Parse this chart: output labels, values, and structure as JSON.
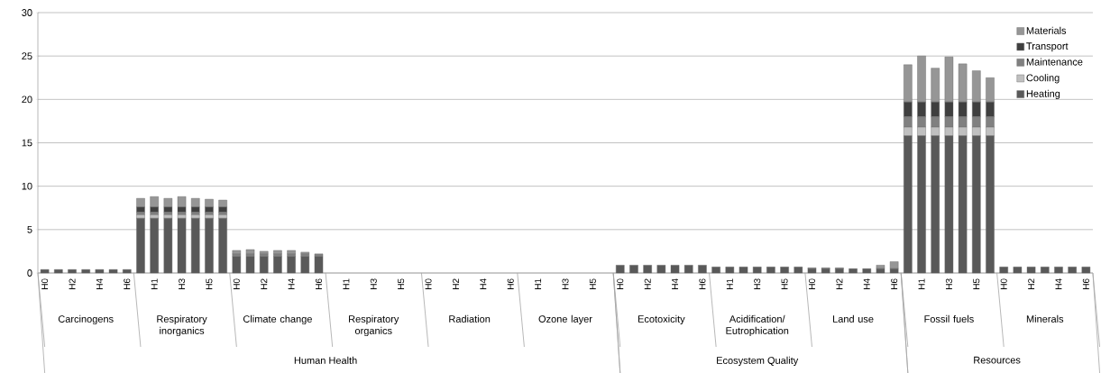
{
  "chart_data": {
    "type": "bar",
    "stacked": true,
    "categories": [
      "H0",
      null,
      "H2",
      null,
      "H4",
      null,
      "H6",
      null,
      "H1",
      null,
      "H3",
      null,
      "H5",
      null,
      "H0",
      null,
      "H2",
      null,
      "H4",
      null,
      "H6",
      null,
      "H1",
      null,
      "H3",
      null,
      "H5",
      null,
      "H0",
      null,
      "H2",
      null,
      "H4",
      null,
      "H6",
      null,
      "H1",
      null,
      "H3",
      null,
      "H5",
      null,
      "H0",
      null,
      "H2",
      null,
      "H4",
      null,
      "H6",
      null,
      "H1",
      null,
      "H3",
      null,
      "H5",
      null,
      "H0",
      null,
      "H2",
      null,
      "H4",
      null,
      "H6",
      null,
      "H1",
      null,
      "H3",
      null,
      "H5",
      null,
      "H0",
      null,
      "H2",
      null,
      "H4",
      null,
      "H6"
    ],
    "series": [
      {
        "name": "Heating",
        "color": "#595959",
        "values": [
          0.4,
          0.4,
          0.4,
          0.4,
          0.4,
          0.4,
          0.4,
          6.3,
          6.3,
          6.3,
          6.3,
          6.3,
          6.3,
          6.3,
          1.9,
          1.9,
          1.9,
          1.9,
          1.9,
          1.9,
          1.9,
          0,
          0,
          0,
          0,
          0,
          0,
          0,
          0,
          0,
          0,
          0,
          0,
          0,
          0,
          0,
          0,
          0,
          0,
          0,
          0,
          0,
          0.9,
          0.9,
          0.9,
          0.9,
          0.9,
          0.9,
          0.9,
          0.7,
          0.7,
          0.7,
          0.7,
          0.7,
          0.7,
          0.7,
          0.5,
          0.5,
          0.5,
          0.5,
          0.5,
          0.5,
          0.5,
          15.8,
          15.8,
          15.8,
          15.8,
          15.8,
          15.8,
          15.8,
          0.7,
          0.7,
          0.7,
          0.7,
          0.7,
          0.7,
          0.7
        ]
      },
      {
        "name": "Cooling",
        "color": "#c0c0c0",
        "values": [
          0,
          0,
          0,
          0,
          0,
          0,
          0,
          0.4,
          0.4,
          0.4,
          0.4,
          0.4,
          0.4,
          0.4,
          0,
          0,
          0,
          0,
          0,
          0,
          0,
          0,
          0,
          0,
          0,
          0,
          0,
          0,
          0,
          0,
          0,
          0,
          0,
          0,
          0,
          0,
          0,
          0,
          0,
          0,
          0,
          0,
          0,
          0,
          0,
          0,
          0,
          0,
          0,
          0,
          0,
          0,
          0,
          0,
          0,
          0,
          0,
          0,
          0,
          0,
          0,
          0,
          0,
          1.0,
          1.0,
          1.0,
          1.0,
          1.0,
          1.0,
          1.0,
          0,
          0,
          0,
          0,
          0,
          0,
          0
        ]
      },
      {
        "name": "Maintenance",
        "color": "#808080",
        "values": [
          0,
          0,
          0,
          0,
          0,
          0,
          0,
          0.3,
          0.3,
          0.3,
          0.3,
          0.3,
          0.3,
          0.3,
          0.3,
          0.3,
          0.3,
          0.3,
          0.3,
          0.3,
          0.3,
          0,
          0,
          0,
          0,
          0,
          0,
          0,
          0,
          0,
          0,
          0,
          0,
          0,
          0,
          0,
          0,
          0,
          0,
          0,
          0,
          0,
          0,
          0,
          0,
          0,
          0,
          0,
          0,
          0,
          0,
          0,
          0,
          0,
          0,
          0,
          0,
          0,
          0,
          0,
          0,
          0,
          0,
          1.2,
          1.2,
          1.2,
          1.2,
          1.2,
          1.2,
          1.2,
          0,
          0,
          0,
          0,
          0,
          0,
          0
        ]
      },
      {
        "name": "Transport",
        "color": "#3f3f3f",
        "values": [
          0,
          0,
          0,
          0,
          0,
          0,
          0,
          0.6,
          0.6,
          0.6,
          0.6,
          0.6,
          0.6,
          0.6,
          0,
          0,
          0,
          0,
          0,
          0,
          0,
          0,
          0,
          0,
          0,
          0,
          0,
          0,
          0,
          0,
          0,
          0,
          0,
          0,
          0,
          0,
          0,
          0,
          0,
          0,
          0,
          0,
          0,
          0,
          0,
          0,
          0,
          0,
          0,
          0,
          0,
          0,
          0,
          0,
          0,
          0,
          0,
          0,
          0,
          0,
          0,
          0,
          0,
          1.7,
          1.7,
          1.7,
          1.7,
          1.7,
          1.7,
          1.7,
          0,
          0,
          0,
          0,
          0,
          0,
          0
        ]
      },
      {
        "name": "Materials",
        "color": "#969696",
        "values": [
          0,
          0,
          0,
          0,
          0,
          0,
          0,
          1.0,
          1.2,
          1.0,
          1.2,
          1.0,
          0.9,
          0.8,
          0.4,
          0.5,
          0.3,
          0.4,
          0.4,
          0.2,
          0,
          0,
          0,
          0,
          0,
          0,
          0,
          0,
          0,
          0,
          0,
          0,
          0,
          0,
          0,
          0,
          0,
          0,
          0,
          0,
          0,
          0,
          0,
          0,
          0,
          0,
          0,
          0,
          0,
          0,
          0,
          0,
          0,
          0,
          0,
          0,
          0.1,
          0.1,
          0.1,
          0,
          0,
          0.4,
          0.8,
          4.3,
          5.3,
          3.9,
          5.2,
          4.4,
          3.6,
          2.8,
          0,
          0,
          0,
          0,
          0,
          0,
          0
        ]
      }
    ],
    "ylim": [
      0,
      30
    ],
    "yticks": [
      0,
      5,
      10,
      15,
      20,
      25,
      30
    ],
    "grid": "y",
    "legend": "top right",
    "annotations": [
      "Carcinogens",
      "Respiratory inorganics",
      "Climate change",
      "Respiratory organics",
      "Radiation",
      "Ozone layer",
      "Ecotoxicity",
      "Acidification/ Eutrophication",
      "Land use",
      "Fossil fuels",
      "Minerals",
      "Human Health",
      "Ecosystem Quality",
      "Resources"
    ]
  }
}
